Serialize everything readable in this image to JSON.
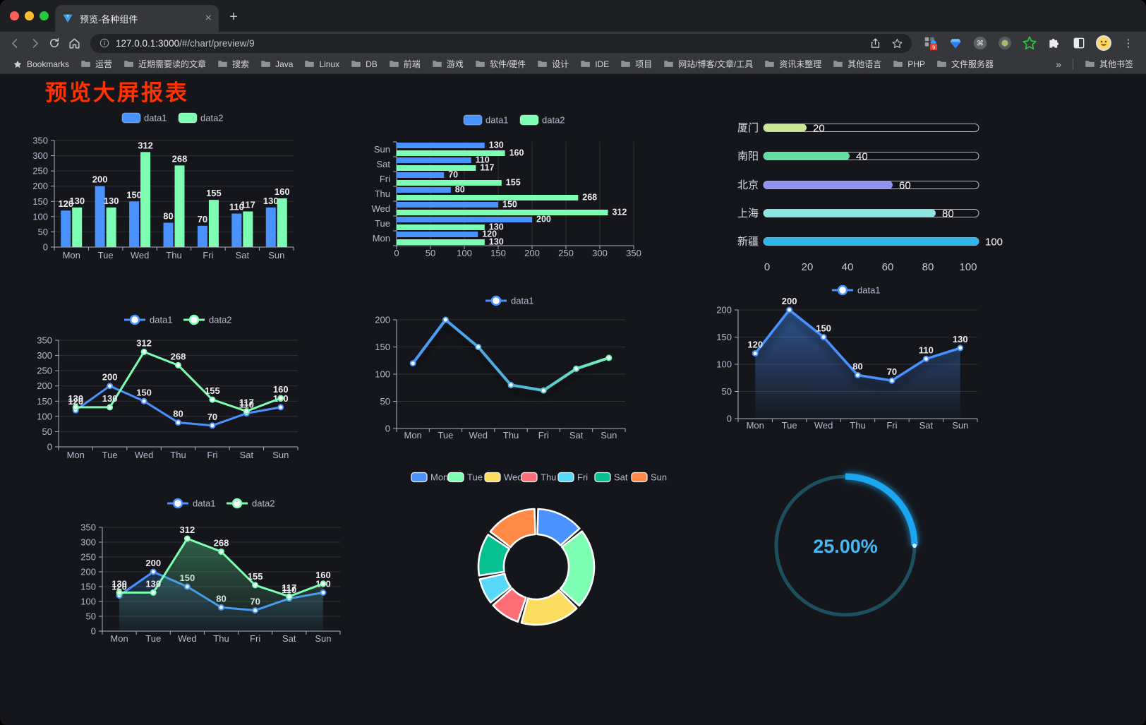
{
  "browser": {
    "tab_title": "预览-各种组件",
    "close_tab_glyph": "×",
    "new_tab_glyph": "+",
    "url_host": "127.0.0.1:3000",
    "url_path": "/#/chart/preview/9",
    "extension_badge": "9",
    "menu_glyph": "⋮",
    "bookmarks_label": "Bookmarks",
    "bookmarks": [
      "运营",
      "近期需要读的文章",
      "搜索",
      "Java",
      "Linux",
      "DB",
      "前端",
      "游戏",
      "软件/硬件",
      "设计",
      "IDE",
      "项目",
      "网站/博客/文章/工具",
      "资讯未整理",
      "其他语言",
      "PHP",
      "文件服务器"
    ],
    "bookmarks_overflow": "»",
    "other_bookmarks": "其他书签"
  },
  "page": {
    "title": "预览大屏报表",
    "title_color": "#ff3200",
    "background": "#14161b"
  },
  "theme": {
    "axis_text": "#b9b8ce",
    "axis_line": "#aeadc0",
    "grid_line": "rgba(255,255,255,0.12)",
    "value_label": "#ebebf0",
    "series_blue": "#4992ff",
    "series_green": "#7cffb2"
  },
  "chart_data": [
    {
      "id": "grouped-bar",
      "type": "bar",
      "orientation": "vertical",
      "categories": [
        "Mon",
        "Tue",
        "Wed",
        "Thu",
        "Fri",
        "Sat",
        "Sun"
      ],
      "series": [
        {
          "name": "data1",
          "color": "#4992ff",
          "values": [
            120,
            200,
            150,
            80,
            70,
            110,
            130
          ]
        },
        {
          "name": "data2",
          "color": "#7cffb2",
          "values": [
            130,
            130,
            312,
            268,
            155,
            117,
            160
          ]
        }
      ],
      "ylim": [
        0,
        350
      ],
      "ytick_step": 50,
      "legend_position": "top",
      "value_labels": true
    },
    {
      "id": "grouped-hbar",
      "type": "bar",
      "orientation": "horizontal",
      "categories": [
        "Mon",
        "Tue",
        "Wed",
        "Thu",
        "Fri",
        "Sat",
        "Sun"
      ],
      "category_axis_display": [
        "Sun",
        "Sat",
        "Fri",
        "Thu",
        "Wed",
        "Tue",
        "Mon"
      ],
      "series": [
        {
          "name": "data1",
          "color": "#4992ff",
          "values": [
            120,
            200,
            150,
            80,
            70,
            110,
            130
          ]
        },
        {
          "name": "data2",
          "color": "#7cffb2",
          "values": [
            130,
            130,
            312,
            268,
            155,
            117,
            160
          ]
        }
      ],
      "xlim": [
        0,
        350
      ],
      "xtick_step": 50,
      "legend_position": "top",
      "value_labels": true
    },
    {
      "id": "city-progress",
      "type": "bar",
      "subtype": "rounded-progress",
      "items": [
        {
          "label": "厦门",
          "value": 20,
          "color": "#c9e795"
        },
        {
          "label": "南阳",
          "value": 40,
          "color": "#5fe0a2"
        },
        {
          "label": "北京",
          "value": 60,
          "color": "#8f93ee"
        },
        {
          "label": "上海",
          "value": 80,
          "color": "#8fe5e1"
        },
        {
          "label": "新疆",
          "value": 100,
          "color": "#2eb6e9"
        }
      ],
      "xlim": [
        0,
        100
      ],
      "xticks": [
        0,
        20,
        40,
        60,
        80,
        100
      ],
      "value_labels": true
    },
    {
      "id": "line-two-series",
      "type": "line",
      "categories": [
        "Mon",
        "Tue",
        "Wed",
        "Thu",
        "Fri",
        "Sat",
        "Sun"
      ],
      "series": [
        {
          "name": "data1",
          "color": "#4992ff",
          "values": [
            120,
            200,
            150,
            80,
            70,
            110,
            130
          ]
        },
        {
          "name": "data2",
          "color": "#7cffb2",
          "values": [
            130,
            130,
            312,
            268,
            155,
            117,
            160
          ]
        }
      ],
      "ylim": [
        0,
        350
      ],
      "ytick_step": 50,
      "legend_position": "top",
      "value_labels": true,
      "markers": true
    },
    {
      "id": "line-gradient",
      "type": "line",
      "categories": [
        "Mon",
        "Tue",
        "Wed",
        "Thu",
        "Fri",
        "Sat",
        "Sun"
      ],
      "series": [
        {
          "name": "data1",
          "color": "#4992ff",
          "color_end": "#7cffb2",
          "gradient": true,
          "values": [
            120,
            200,
            150,
            80,
            70,
            110,
            130
          ]
        }
      ],
      "ylim": [
        0,
        200
      ],
      "ytick_step": 50,
      "legend_position": "top",
      "value_labels": false,
      "markers": true,
      "shadow": true
    },
    {
      "id": "area-single",
      "type": "area",
      "categories": [
        "Mon",
        "Tue",
        "Wed",
        "Thu",
        "Fri",
        "Sat",
        "Sun"
      ],
      "series": [
        {
          "name": "data1",
          "color": "#4992ff",
          "values": [
            120,
            200,
            150,
            80,
            70,
            110,
            130
          ]
        }
      ],
      "ylim": [
        0,
        200
      ],
      "ytick_step": 50,
      "legend_position": "top",
      "value_labels": true,
      "markers": true,
      "shadow": true
    },
    {
      "id": "area-two-series",
      "type": "area",
      "categories": [
        "Mon",
        "Tue",
        "Wed",
        "Thu",
        "Fri",
        "Sat",
        "Sun"
      ],
      "series": [
        {
          "name": "data1",
          "color": "#4992ff",
          "values": [
            120,
            200,
            150,
            80,
            70,
            110,
            130
          ]
        },
        {
          "name": "data2",
          "color": "#7cffb2",
          "values": [
            130,
            130,
            312,
            268,
            155,
            117,
            160
          ]
        }
      ],
      "ylim": [
        0,
        350
      ],
      "ytick_step": 50,
      "legend_position": "top",
      "value_labels": true,
      "markers": true
    },
    {
      "id": "donut",
      "type": "pie",
      "donut": true,
      "categories": [
        "Mon",
        "Tue",
        "Wed",
        "Thu",
        "Fri",
        "Sat",
        "Sun"
      ],
      "values": [
        120,
        200,
        150,
        80,
        70,
        110,
        130
      ],
      "colors": [
        "#4992ff",
        "#7cffb2",
        "#fddd60",
        "#ff6e76",
        "#58d9f9",
        "#05c091",
        "#ff8a45"
      ],
      "border_color": "#ffffff",
      "legend_position": "top"
    },
    {
      "id": "ring-gauge",
      "type": "gauge",
      "value": 25,
      "max": 100,
      "display": "25.00%",
      "color": "#1fa6f0",
      "track_color": "#1d4f5e",
      "text_color": "#49b7f3"
    }
  ]
}
